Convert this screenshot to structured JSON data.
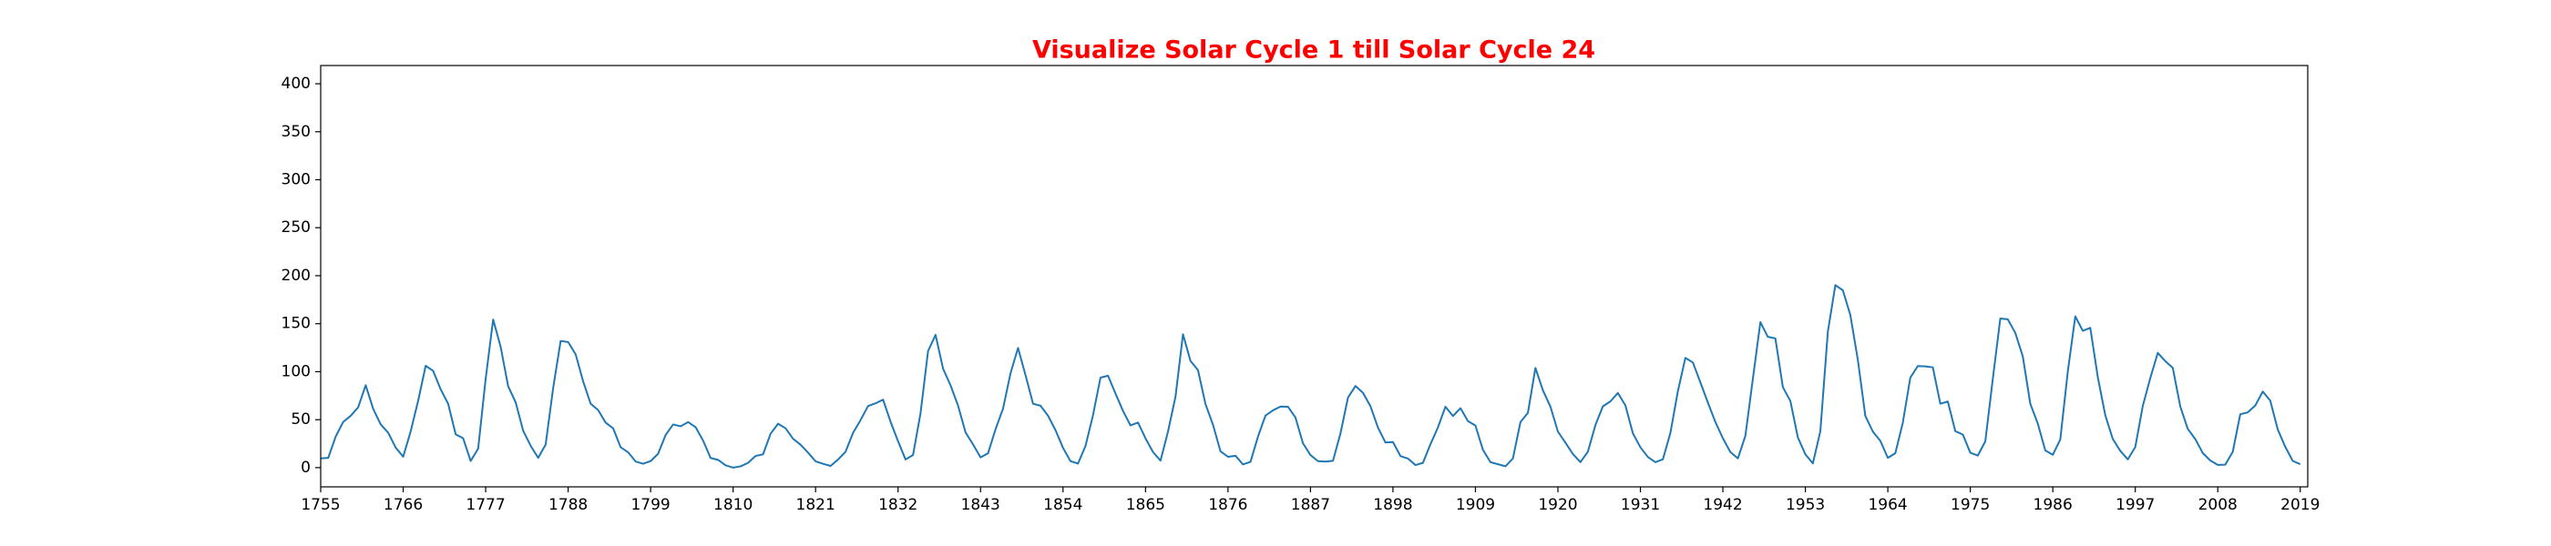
{
  "chart_data": {
    "type": "line",
    "title": "Visualize Solar Cycle 1 till Solar Cycle 24",
    "color": "#1f77b4",
    "x": [
      1755,
      1756,
      1757,
      1758,
      1759,
      1760,
      1761,
      1762,
      1763,
      1764,
      1765,
      1766,
      1767,
      1768,
      1769,
      1770,
      1771,
      1772,
      1773,
      1774,
      1775,
      1776,
      1777,
      1778,
      1779,
      1780,
      1781,
      1782,
      1783,
      1784,
      1785,
      1786,
      1787,
      1788,
      1789,
      1790,
      1791,
      1792,
      1793,
      1794,
      1795,
      1796,
      1797,
      1798,
      1799,
      1800,
      1801,
      1802,
      1803,
      1804,
      1805,
      1806,
      1807,
      1808,
      1809,
      1810,
      1811,
      1812,
      1813,
      1814,
      1815,
      1816,
      1817,
      1818,
      1819,
      1820,
      1821,
      1822,
      1823,
      1824,
      1825,
      1826,
      1827,
      1828,
      1829,
      1830,
      1831,
      1832,
      1833,
      1834,
      1835,
      1836,
      1837,
      1838,
      1839,
      1840,
      1841,
      1842,
      1843,
      1844,
      1845,
      1846,
      1847,
      1848,
      1849,
      1850,
      1851,
      1852,
      1853,
      1854,
      1855,
      1856,
      1857,
      1858,
      1859,
      1860,
      1861,
      1862,
      1863,
      1864,
      1865,
      1866,
      1867,
      1868,
      1869,
      1870,
      1871,
      1872,
      1873,
      1874,
      1875,
      1876,
      1877,
      1878,
      1879,
      1880,
      1881,
      1882,
      1883,
      1884,
      1885,
      1886,
      1887,
      1888,
      1889,
      1890,
      1891,
      1892,
      1893,
      1894,
      1895,
      1896,
      1897,
      1898,
      1899,
      1900,
      1901,
      1902,
      1903,
      1904,
      1905,
      1906,
      1907,
      1908,
      1909,
      1910,
      1911,
      1912,
      1913,
      1914,
      1915,
      1916,
      1917,
      1918,
      1919,
      1920,
      1921,
      1922,
      1923,
      1924,
      1925,
      1926,
      1927,
      1928,
      1929,
      1930,
      1931,
      1932,
      1933,
      1934,
      1935,
      1936,
      1937,
      1938,
      1939,
      1940,
      1941,
      1942,
      1943,
      1944,
      1945,
      1946,
      1947,
      1948,
      1949,
      1950,
      1951,
      1952,
      1953,
      1954,
      1955,
      1956,
      1957,
      1958,
      1959,
      1960,
      1961,
      1962,
      1963,
      1964,
      1965,
      1966,
      1967,
      1968,
      1969,
      1970,
      1971,
      1972,
      1973,
      1974,
      1975,
      1976,
      1977,
      1978,
      1979,
      1980,
      1981,
      1982,
      1983,
      1984,
      1985,
      1986,
      1987,
      1988,
      1989,
      1990,
      1991,
      1992,
      1993,
      1994,
      1995,
      1996,
      1997,
      1998,
      1999,
      2000,
      2001,
      2002,
      2003,
      2004,
      2005,
      2006,
      2007,
      2008,
      2009,
      2010,
      2011,
      2012,
      2013,
      2014,
      2015,
      2016,
      2017,
      2018,
      2019
    ],
    "values": [
      9.6,
      10.2,
      32.4,
      47.6,
      54.0,
      62.9,
      85.9,
      61.2,
      45.1,
      36.4,
      20.9,
      11.4,
      37.8,
      69.8,
      106.1,
      100.8,
      81.6,
      66.5,
      34.8,
      30.6,
      7.0,
      19.8,
      92.5,
      154.4,
      125.9,
      84.8,
      68.1,
      38.5,
      22.8,
      10.2,
      24.1,
      82.9,
      132.0,
      130.9,
      118.1,
      89.9,
      66.6,
      60.0,
      46.9,
      41.0,
      21.3,
      16.0,
      6.4,
      4.1,
      6.8,
      14.5,
      34.0,
      45.0,
      43.1,
      47.5,
      42.2,
      28.1,
      10.1,
      8.1,
      2.5,
      0.0,
      1.4,
      5.0,
      12.2,
      13.9,
      35.4,
      45.8,
      41.0,
      30.1,
      23.9,
      15.6,
      6.6,
      4.0,
      1.8,
      8.5,
      16.6,
      36.3,
      49.6,
      64.2,
      67.0,
      70.9,
      47.8,
      27.5,
      8.5,
      13.2,
      56.9,
      121.5,
      138.3,
      103.2,
      85.7,
      64.6,
      36.7,
      24.2,
      10.7,
      15.0,
      40.1,
      61.5,
      98.5,
      124.7,
      96.3,
      66.6,
      64.5,
      54.1,
      39.0,
      20.6,
      6.7,
      4.3,
      22.7,
      54.8,
      93.8,
      95.8,
      77.2,
      59.1,
      44.0,
      47.0,
      30.5,
      16.3,
      7.3,
      37.6,
      74.0,
      139.0,
      111.2,
      101.6,
      66.2,
      44.7,
      17.0,
      11.3,
      12.4,
      3.4,
      6.0,
      32.3,
      54.3,
      59.7,
      63.7,
      63.5,
      52.2,
      25.4,
      13.1,
      6.8,
      6.3,
      7.1,
      35.6,
      73.0,
      85.1,
      78.0,
      64.0,
      41.8,
      26.2,
      26.7,
      12.1,
      9.5,
      2.7,
      5.0,
      24.4,
      42.0,
      63.5,
      53.8,
      62.0,
      48.5,
      43.9,
      18.6,
      5.7,
      3.6,
      1.4,
      9.6,
      47.4,
      57.1,
      103.9,
      80.6,
      63.6,
      37.6,
      26.1,
      14.2,
      5.8,
      16.7,
      44.3,
      63.9,
      69.0,
      77.8,
      64.9,
      35.7,
      21.2,
      11.1,
      5.7,
      8.7,
      36.1,
      79.7,
      114.4,
      109.6,
      88.8,
      67.8,
      47.5,
      30.6,
      16.3,
      9.6,
      33.2,
      92.6,
      151.6,
      136.3,
      134.7,
      83.9,
      69.4,
      31.5,
      13.9,
      4.4,
      38.0,
      141.7,
      190.2,
      184.8,
      159.0,
      112.3,
      53.9,
      37.6,
      27.9,
      10.2,
      15.1,
      47.0,
      93.8,
      105.9,
      105.5,
      104.5,
      66.6,
      68.9,
      38.0,
      34.5,
      15.5,
      12.6,
      27.5,
      92.5,
      155.4,
      154.6,
      140.4,
      115.9,
      66.6,
      45.9,
      17.9,
      13.4,
      29.4,
      100.2,
      157.6,
      142.6,
      145.7,
      94.3,
      54.6,
      29.9,
      17.5,
      8.6,
      21.5,
      64.3,
      93.3,
      119.6,
      111.0,
      104.0,
      63.7,
      40.4,
      29.8,
      15.2,
      7.5,
      2.9,
      3.1,
      16.5,
      55.7,
      57.6,
      64.7,
      79.3,
      69.8,
      39.8,
      21.7,
      7.0,
      3.6
    ],
    "xlim": [
      1755,
      2020
    ],
    "xticks": [
      1755,
      1766,
      1777,
      1788,
      1799,
      1810,
      1821,
      1832,
      1843,
      1854,
      1865,
      1876,
      1887,
      1898,
      1909,
      1920,
      1931,
      1942,
      1953,
      1964,
      1975,
      1986,
      1997,
      2008,
      2019
    ],
    "ylim": [
      -20,
      419
    ],
    "yticks": [
      0,
      50,
      100,
      150,
      200,
      250,
      300,
      350,
      400
    ],
    "grid": false
  }
}
